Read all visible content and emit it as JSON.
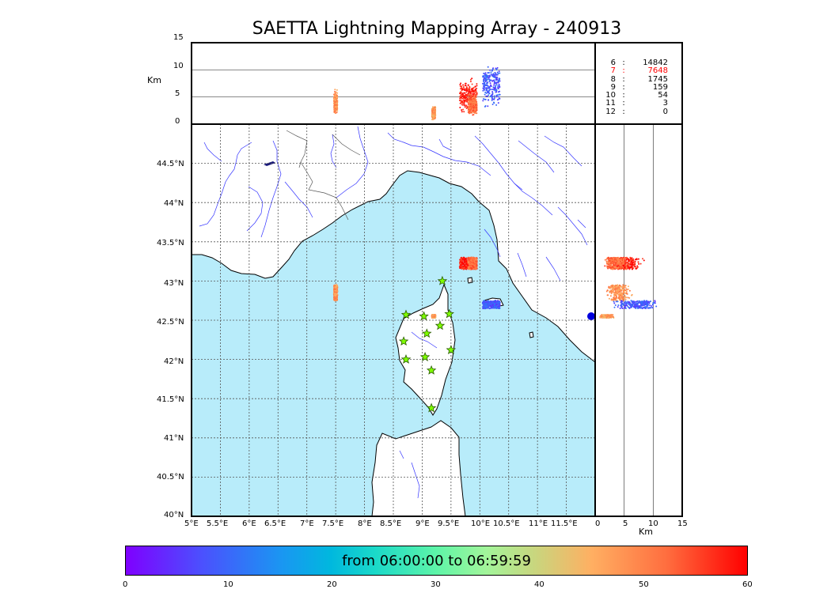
{
  "title": "SAETTA Lightning Mapping Array - 240913",
  "altitude_panel": {
    "ylabel": "Km",
    "yticks": [
      "15",
      "10",
      "5",
      "0"
    ]
  },
  "side_panel": {
    "xlabel": "Km",
    "xticks": [
      "0",
      "5",
      "10",
      "15"
    ]
  },
  "map": {
    "lon_ticks": [
      "5°E",
      "5.5°E",
      "6°E",
      "6.5°E",
      "7°E",
      "7.5°E",
      "8°E",
      "8.5°E",
      "9°E",
      "9.5°E",
      "10°E",
      "10.5°E",
      "11°E",
      "11.5°E"
    ],
    "lat_ticks": [
      "44.5°N",
      "44°N",
      "43.5°N",
      "43°N",
      "42.5°N",
      "42°N",
      "41.5°N",
      "41°N",
      "40.5°N",
      "40°N"
    ],
    "sea_color": "#b8ecfa",
    "river_color": "#3333ff",
    "station_color": "#7fff00",
    "stations_lonlat": [
      [
        9.35,
        43.0
      ],
      [
        8.72,
        42.57
      ],
      [
        9.03,
        42.55
      ],
      [
        9.47,
        42.58
      ],
      [
        9.31,
        42.43
      ],
      [
        9.08,
        42.33
      ],
      [
        8.68,
        42.23
      ],
      [
        9.5,
        42.12
      ],
      [
        9.05,
        42.03
      ],
      [
        8.72,
        42.0
      ],
      [
        9.16,
        41.86
      ],
      [
        9.16,
        41.38
      ]
    ]
  },
  "chart_data": {
    "type": "scatter",
    "title": "SAETTA Lightning Mapping Array - 240913",
    "map_extent": {
      "lon": [
        5.0,
        12.0
      ],
      "lat": [
        40.0,
        45.0
      ]
    },
    "altitude_range_km": [
      0,
      15
    ],
    "sources": [
      {
        "lon": 7.5,
        "lat_range": [
          42.75,
          42.95
        ],
        "alt_range_km": [
          1.5,
          6.5
        ],
        "time_min": 48
      },
      {
        "lon": 9.2,
        "lat": 42.55,
        "alt_range_km": [
          0.5,
          3.5
        ],
        "time_min": 47
      },
      {
        "lon_range": [
          9.65,
          9.95
        ],
        "lat_range": [
          43.15,
          43.3
        ],
        "alt_range_km": [
          1,
          9
        ],
        "time_min": 58
      },
      {
        "lon_range": [
          9.8,
          9.95
        ],
        "lat_range": [
          43.15,
          43.3
        ],
        "alt_range_km": [
          1,
          6
        ],
        "time_min": 52
      },
      {
        "lon_range": [
          10.05,
          10.35
        ],
        "lat_range": [
          42.65,
          42.75
        ],
        "alt_range_km": [
          2.5,
          12
        ],
        "time_min": 8
      }
    ],
    "station_counts": [
      {
        "stations": "6",
        "count": "14842",
        "highlight": false
      },
      {
        "stations": "7",
        "count": "7648",
        "highlight": true
      },
      {
        "stations": "8",
        "count": "1745",
        "highlight": false
      },
      {
        "stations": "9",
        "count": "159",
        "highlight": false
      },
      {
        "stations": "10",
        "count": "54",
        "highlight": false
      },
      {
        "stations": "11",
        "count": "3",
        "highlight": false
      },
      {
        "stations": "12",
        "count": "0",
        "highlight": false
      }
    ],
    "highlight_color": "#ff0000",
    "colorbar": {
      "label": "from 06:00:00 to 06:59:59",
      "ticks": [
        "0",
        "10",
        "20",
        "30",
        "40",
        "50",
        "60"
      ],
      "range": [
        0,
        60
      ],
      "colors": [
        "#7f00ff",
        "#1a96f2",
        "#5ef5a8",
        "#ffaf62",
        "#ff0000"
      ]
    }
  }
}
